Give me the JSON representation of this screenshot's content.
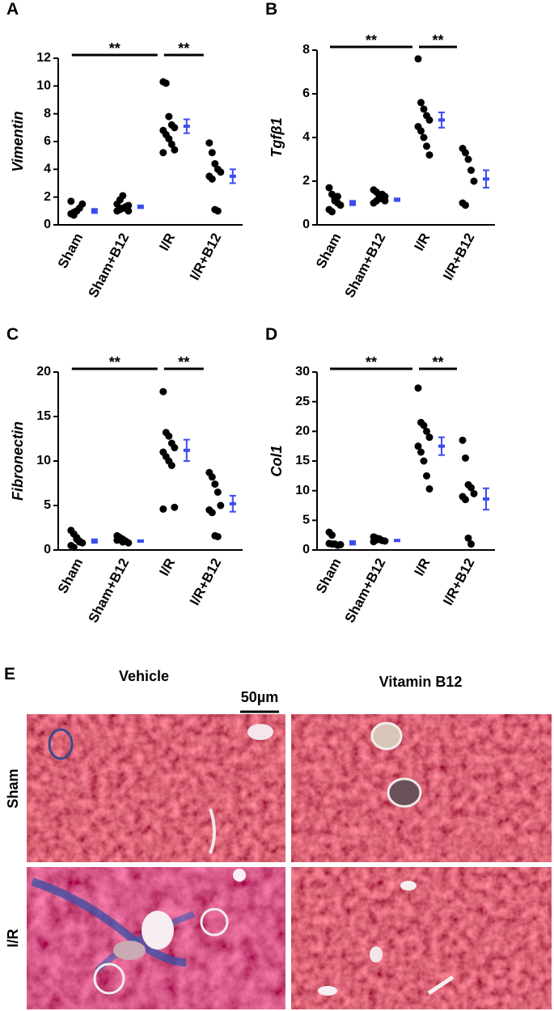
{
  "chart_data": [
    {
      "type": "strip",
      "panel": "A",
      "y_label": "Vimentin",
      "categories": [
        "Sham",
        "Sham+B12",
        "I/R",
        "I/R+B12"
      ],
      "points": [
        [
          0.8,
          0.9,
          1.0,
          1.2,
          1.5,
          1.7,
          0.7,
          1.0
        ],
        [
          1.0,
          1.1,
          1.2,
          1.3,
          1.4,
          1.5,
          1.8,
          2.1,
          1.2,
          1.0
        ],
        [
          10.3,
          10.2,
          7.8,
          7.2,
          7.0,
          6.8,
          6.5,
          6.2,
          5.8,
          5.4,
          5.2
        ],
        [
          5.9,
          5.2,
          4.4,
          4.0,
          3.8,
          3.5,
          3.3,
          1.1,
          1.0
        ]
      ],
      "means": [
        1.0,
        1.3,
        7.1,
        3.5
      ],
      "errors": [
        0.15,
        0.1,
        0.5,
        0.5
      ],
      "ylim": [
        0,
        12
      ],
      "yticks": [
        0,
        2,
        4,
        6,
        8,
        10,
        12
      ],
      "significance": [
        {
          "between": [
            "Sham",
            "I/R"
          ],
          "label": "**"
        },
        {
          "between": [
            "I/R",
            "I/R+B12"
          ],
          "label": "**"
        }
      ],
      "point_color": "#000000",
      "mean_color": "#3b4bf0"
    },
    {
      "type": "strip",
      "panel": "B",
      "y_label": "Tgfβ1",
      "categories": [
        "Sham",
        "Sham+B12",
        "I/R",
        "I/R+B12"
      ],
      "points": [
        [
          1.7,
          1.4,
          1.2,
          1.0,
          0.9,
          0.7,
          0.6,
          1.1,
          1.3
        ],
        [
          1.6,
          1.5,
          1.3,
          1.2,
          1.1,
          1.0,
          1.1,
          1.2,
          1.4,
          1.3
        ],
        [
          7.6,
          5.6,
          5.3,
          5.0,
          4.8,
          4.5,
          4.3,
          4.0,
          3.6,
          3.2
        ],
        [
          3.5,
          3.3,
          3.0,
          2.5,
          2.0,
          1.0,
          0.9
        ]
      ],
      "means": [
        1.0,
        1.15,
        4.8,
        2.1
      ],
      "errors": [
        0.1,
        0.06,
        0.35,
        0.4
      ],
      "ylim": [
        0,
        8
      ],
      "yticks": [
        0,
        2,
        4,
        6,
        8
      ],
      "significance": [
        {
          "between": [
            "Sham",
            "I/R"
          ],
          "label": "**"
        },
        {
          "between": [
            "I/R",
            "I/R+B12"
          ],
          "label": "**"
        }
      ],
      "point_color": "#000000",
      "mean_color": "#3b4bf0"
    },
    {
      "type": "strip",
      "panel": "C",
      "y_label": "Fibronectin",
      "categories": [
        "Sham",
        "Sham+B12",
        "I/R",
        "I/R+B12"
      ],
      "points": [
        [
          2.2,
          1.8,
          1.4,
          1.0,
          0.8,
          0.5,
          0.3,
          1.2,
          0.9
        ],
        [
          1.6,
          1.4,
          1.2,
          1.0,
          0.8,
          1.1,
          1.3,
          0.9
        ],
        [
          17.8,
          13.2,
          12.8,
          12.0,
          11.5,
          11.0,
          10.5,
          10.0,
          9.5,
          4.8,
          4.6
        ],
        [
          8.7,
          8.2,
          7.4,
          6.5,
          5.0,
          4.5,
          4.2,
          1.6,
          1.5
        ]
      ],
      "means": [
        1.0,
        1.0,
        11.2,
        5.2
      ],
      "errors": [
        0.2,
        0.1,
        1.2,
        0.9
      ],
      "ylim": [
        0,
        20
      ],
      "yticks": [
        0,
        5,
        10,
        15,
        20
      ],
      "significance": [
        {
          "between": [
            "Sham",
            "I/R"
          ],
          "label": "**"
        },
        {
          "between": [
            "I/R",
            "I/R+B12"
          ],
          "label": "**"
        }
      ],
      "point_color": "#000000",
      "mean_color": "#3b4bf0"
    },
    {
      "type": "strip",
      "panel": "D",
      "y_label": "Col1",
      "categories": [
        "Sham",
        "Sham+B12",
        "I/R",
        "I/R+B12"
      ],
      "points": [
        [
          3.0,
          2.5,
          1.0,
          0.8,
          0.9,
          1.1,
          1.0
        ],
        [
          2.2,
          2.0,
          1.8,
          1.6,
          1.5,
          1.4,
          1.7,
          1.9
        ],
        [
          27.3,
          21.5,
          21.0,
          20.0,
          19.0,
          17.5,
          16.5,
          15.0,
          12.5,
          10.3
        ],
        [
          18.5,
          15.5,
          11.0,
          10.5,
          9.5,
          9.0,
          8.5,
          2.0,
          1.0
        ]
      ],
      "means": [
        1.2,
        1.6,
        17.5,
        8.6
      ],
      "errors": [
        0.3,
        0.1,
        1.5,
        1.8
      ],
      "ylim": [
        0,
        30
      ],
      "yticks": [
        0,
        5,
        10,
        15,
        20,
        25,
        30
      ],
      "significance": [
        {
          "between": [
            "Sham",
            "I/R"
          ],
          "label": "**"
        },
        {
          "between": [
            "I/R",
            "I/R+B12"
          ],
          "label": "**"
        }
      ],
      "point_color": "#000000",
      "mean_color": "#3b4bf0"
    }
  ],
  "histology": {
    "panel": "E",
    "columns": [
      "Vehicle",
      "Vitamin B12"
    ],
    "rows": [
      "Sham",
      "I/R"
    ],
    "scale_bar": "50µm"
  }
}
